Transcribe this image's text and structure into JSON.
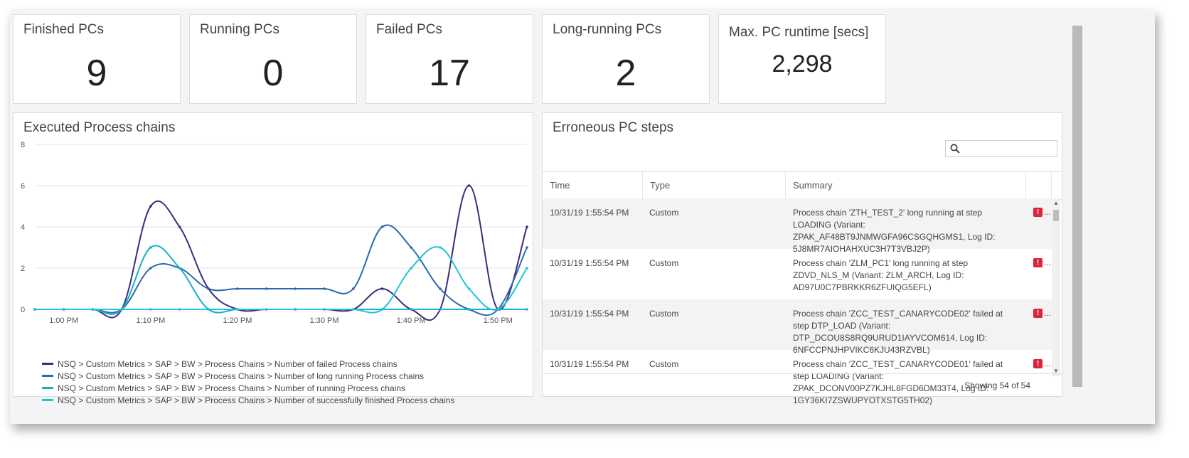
{
  "kpis": [
    {
      "title": "Finished PCs",
      "value": "9"
    },
    {
      "title": "Running PCs",
      "value": "0"
    },
    {
      "title": "Failed PCs",
      "value": "17"
    },
    {
      "title": "Long-running PCs",
      "value": "2"
    },
    {
      "title": "Max. PC runtime [secs]",
      "value": "2,298"
    }
  ],
  "chart_panel": {
    "title": "Executed Process chains"
  },
  "chart_data": {
    "type": "line",
    "title": "Executed Process chains",
    "x": [
      "12:56 PM",
      "1:00 PM",
      "1:03 PM",
      "1:06 PM",
      "1:10 PM",
      "1:13 PM",
      "1:16 PM",
      "1:20 PM",
      "1:23 PM",
      "1:26 PM",
      "1:30 PM",
      "1:33 PM",
      "1:36 PM",
      "1:40 PM",
      "1:43 PM",
      "1:46 PM",
      "1:50 PM",
      "1:53 PM"
    ],
    "xticks": [
      "1:00 PM",
      "1:10 PM",
      "1:20 PM",
      "1:30 PM",
      "1:40 PM",
      "1:50 PM"
    ],
    "ylim": [
      0,
      8
    ],
    "yticks": [
      0,
      2,
      4,
      6,
      8
    ],
    "grid": true,
    "legend_placement": "bottom",
    "series": [
      {
        "name": "NSQ > Custom Metrics > SAP > BW > Process Chains > Number of failed Process chains",
        "color": "#3b2c7c",
        "values": [
          0,
          0,
          0,
          0,
          5,
          4,
          1,
          0,
          0,
          0,
          0,
          0,
          1,
          0,
          0,
          6,
          0,
          4
        ]
      },
      {
        "name": "NSQ > Custom Metrics > SAP > BW > Process Chains > Number of long running Process chains",
        "color": "#2c67ad",
        "values": [
          0,
          0,
          0,
          0,
          2,
          2,
          1,
          1,
          1,
          1,
          1,
          1,
          4,
          3,
          1,
          0,
          0,
          3
        ]
      },
      {
        "name": "NSQ > Custom Metrics > SAP > BW > Process Chains > Number of running Process chains",
        "color": "#16b0c8",
        "values": [
          0,
          0,
          0,
          0,
          3,
          2,
          0,
          0,
          0,
          0,
          0,
          0,
          0,
          0,
          0,
          0,
          0,
          0
        ]
      },
      {
        "name": "NSQ > Custom Metrics > SAP > BW > Process Chains > Number of successfully finished Process chains",
        "color": "#22c3d6",
        "values": [
          0,
          0,
          0,
          0,
          0,
          0,
          0,
          0,
          0,
          0,
          0,
          0,
          0,
          2,
          3,
          1,
          0,
          2
        ]
      }
    ]
  },
  "errors_panel": {
    "title": "Erroneous PC steps",
    "search_placeholder": "",
    "columns": [
      "Time",
      "Type",
      "Summary"
    ],
    "rows": [
      {
        "time": "10/31/19 1:55:54 PM",
        "type": "Custom",
        "summary": "Process chain 'ZTH_TEST_2' long running at step LOADING (Variant: ZPAK_AF48BT9JNMWGFA96CSGQHGMS1, Log ID: 5J8MR7AIOHAHXUC3H7T3VBJ2P)"
      },
      {
        "time": "10/31/19 1:55:54 PM",
        "type": "Custom",
        "summary": "Process chain 'ZLM_PC1' long running at step ZDVD_NLS_M (Variant: ZLM_ARCH, Log ID: AD97U0C7PBRKKR6ZFUIQG5EFL)"
      },
      {
        "time": "10/31/19 1:55:54 PM",
        "type": "Custom",
        "summary": "Process chain 'ZCC_TEST_CANARYCODE02' failed at step DTP_LOAD (Variant: DTP_DCOU8S8RQ9URUD1IAYVCOM614, Log ID: 6NFCCPNJHPVIKC6KJU43RZVBL)"
      },
      {
        "time": "10/31/19 1:55:54 PM",
        "type": "Custom",
        "summary": "Process chain 'ZCC_TEST_CANARYCODE01' failed at step LOADING (Variant: ZPAK_DCONV00PZ7KJHL8FGD6DM33T4, Log ID: 1GY36KI7ZSWUPYOTXSTG5TH02)"
      }
    ],
    "row_action": {
      "badge": "!",
      "more": "..."
    },
    "footer": "Showing 54 of 54"
  }
}
